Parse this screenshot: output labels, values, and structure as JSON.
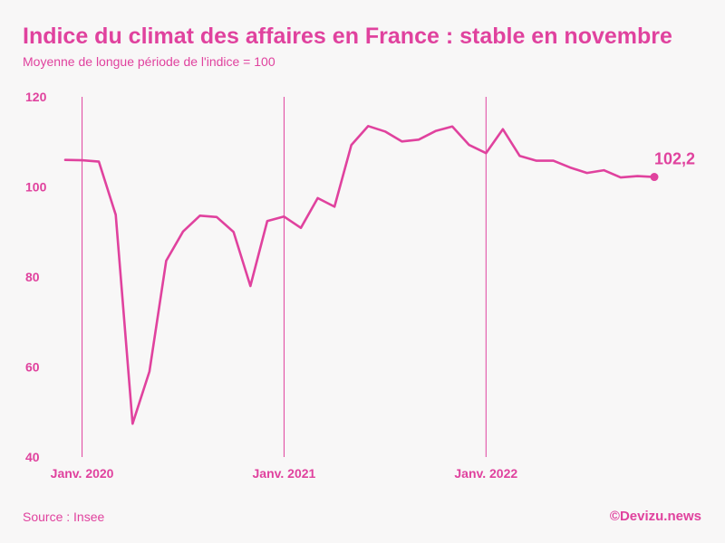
{
  "title": "Indice du climat des affaires en France : stable en novembre",
  "subtitle": "Moyenne de longue période de l'indice = 100",
  "source": "Source : Insee",
  "brand": "©Devizu.news",
  "colors": {
    "accent": "#e0429e",
    "background": "#f8f7f7",
    "gridline": "#e0429e"
  },
  "chart_data": {
    "type": "line",
    "title": "Indice du climat des affaires en France : stable en novembre",
    "subtitle": "Moyenne de longue période de l'indice = 100",
    "xlabel": "",
    "ylabel": "",
    "ylim": [
      40,
      120
    ],
    "yticks": [
      40,
      60,
      80,
      100,
      120
    ],
    "xticks": [
      {
        "label": "Janv. 2020",
        "x": "2020-01"
      },
      {
        "label": "Janv. 2021",
        "x": "2021-01"
      },
      {
        "label": "Janv. 2022",
        "x": "2022-01"
      }
    ],
    "grid": "vertical lines at January of each year",
    "legend": "none",
    "end_label": "102,2",
    "x": [
      "2019-12",
      "2020-01",
      "2020-02",
      "2020-03",
      "2020-04",
      "2020-05",
      "2020-06",
      "2020-07",
      "2020-08",
      "2020-09",
      "2020-10",
      "2020-11",
      "2020-12",
      "2021-01",
      "2021-02",
      "2021-03",
      "2021-04",
      "2021-05",
      "2021-06",
      "2021-07",
      "2021-08",
      "2021-09",
      "2021-10",
      "2021-11",
      "2021-12",
      "2022-01",
      "2022-02",
      "2022-03",
      "2022-04",
      "2022-05",
      "2022-06",
      "2022-07",
      "2022-08",
      "2022-09",
      "2022-10",
      "2022-11"
    ],
    "values": [
      106,
      105.9,
      105.6,
      93.8,
      47.4,
      59,
      83.6,
      90.1,
      93.6,
      93.3,
      90,
      78,
      92.4,
      93.4,
      90.9,
      97.5,
      95.6,
      109.3,
      113.5,
      112.3,
      110.1,
      110.5,
      112.4,
      113.4,
      109.3,
      107.5,
      112.8,
      106.9,
      105.8,
      105.8,
      104.3,
      103.1,
      103.7,
      102.1,
      102.4,
      102.2
    ]
  }
}
